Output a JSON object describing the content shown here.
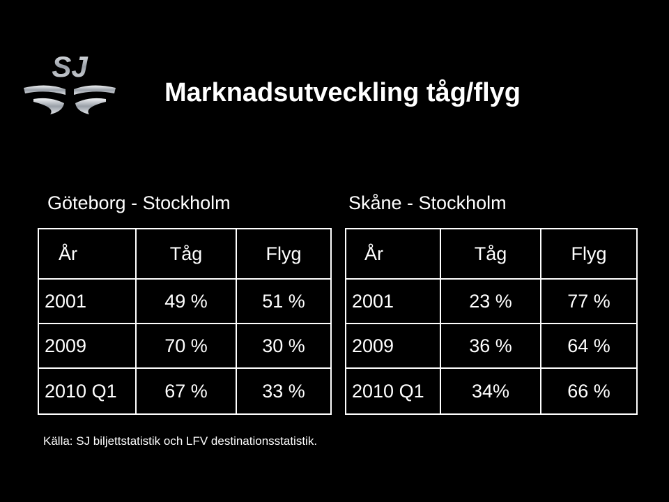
{
  "brand": {
    "logo_text": "SJ"
  },
  "title": "Marknadsutveckling tåg/flyg",
  "tables": [
    {
      "route": "Göteborg - Stockholm",
      "headers": [
        "År",
        "Tåg",
        "Flyg"
      ],
      "rows": [
        [
          "2001",
          "49 %",
          "51 %"
        ],
        [
          "2009",
          "70 %",
          "30 %"
        ],
        [
          "2010 Q1",
          "67 %",
          "33 %"
        ]
      ]
    },
    {
      "route": "Skåne - Stockholm",
      "headers": [
        "År",
        "Tåg",
        "Flyg"
      ],
      "rows": [
        [
          "2001",
          "23 %",
          "77 %"
        ],
        [
          "2009",
          "36 %",
          "64 %"
        ],
        [
          "2010 Q1",
          "34%",
          "66 %"
        ]
      ]
    }
  ],
  "source": "Källa: SJ biljettstatistik och LFV destinationsstatistik.",
  "colors": {
    "background": "#000000",
    "text": "#ffffff",
    "logo_silver": "#c8ccd2"
  }
}
